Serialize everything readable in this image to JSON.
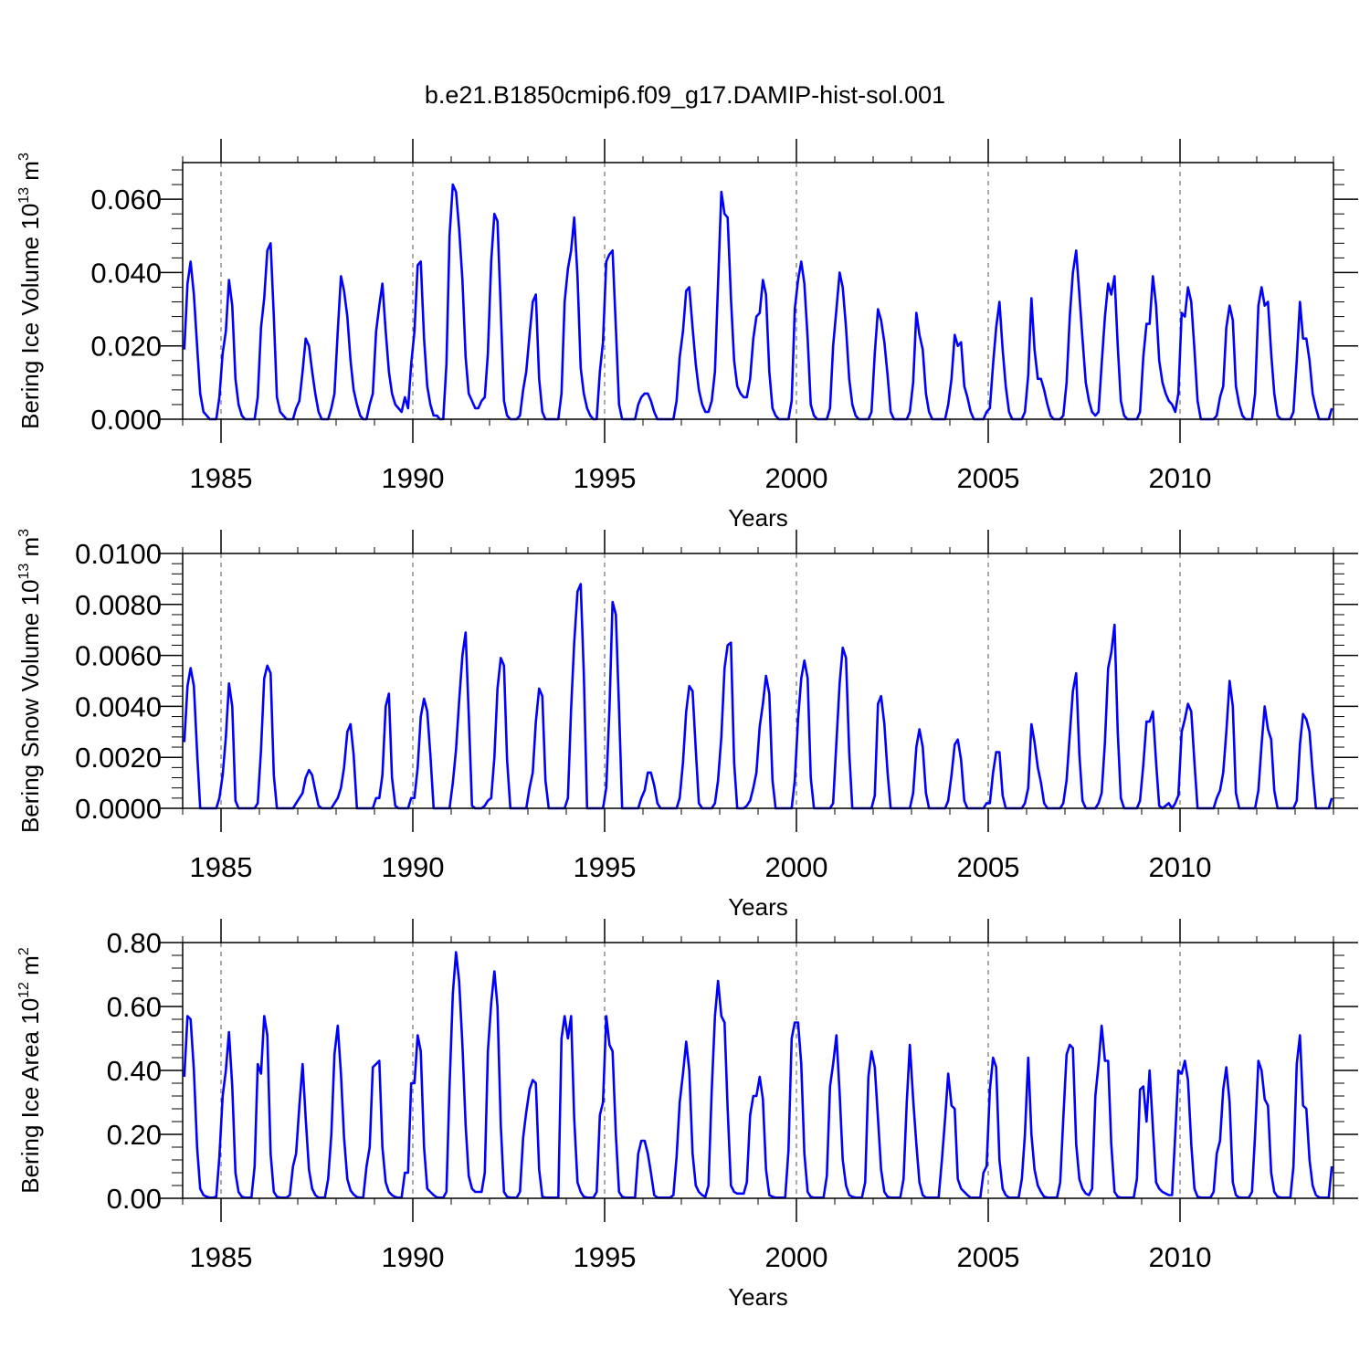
{
  "title": "b.e21.B1850cmip6.f09_g17.DAMIP-hist-sol.001",
  "colors": {
    "series": "#0000ff",
    "axis": "#000000",
    "grid": "#555555"
  },
  "chart_data": [
    {
      "type": "line",
      "name": "ice-volume",
      "ylabel_prefix": "Bering Ice Volume 10",
      "ylabel_exp": "13",
      "ylabel_unit": " m",
      "ylabel_unit_exp": "3",
      "xlabel": "Years",
      "xlim": [
        1984,
        2014
      ],
      "ylim": [
        0,
        0.07
      ],
      "yticks": [
        0,
        0.02,
        0.04,
        0.06
      ],
      "ytick_labels": [
        "0.000",
        "0.020",
        "0.040",
        "0.060"
      ],
      "xticks": [
        1985,
        1990,
        1995,
        2000,
        2005,
        2010
      ],
      "xtick_labels": [
        "1985",
        "1990",
        "1995",
        "2000",
        "2005",
        "2010"
      ],
      "start_year": 1984,
      "values": [
        0.019,
        0.037,
        0.043,
        0.034,
        0.02,
        0.007,
        0.002,
        0.001,
        0,
        0,
        0,
        0.006,
        0.018,
        0.024,
        0.038,
        0.031,
        0.011,
        0.004,
        0.001,
        0,
        0,
        0,
        0,
        0.006,
        0.025,
        0.033,
        0.046,
        0.048,
        0.028,
        0.006,
        0.002,
        0.001,
        0,
        0,
        0,
        0.003,
        0.005,
        0.013,
        0.022,
        0.02,
        0.013,
        0.007,
        0.002,
        0,
        0,
        0,
        0.003,
        0.007,
        0.024,
        0.039,
        0.035,
        0.028,
        0.016,
        0.008,
        0.004,
        0.001,
        0,
        0,
        0.004,
        0.007,
        0.024,
        0.031,
        0.037,
        0.024,
        0.013,
        0.007,
        0.004,
        0.003,
        0.002,
        0.006,
        0.003,
        0.015,
        0.024,
        0.042,
        0.043,
        0.022,
        0.009,
        0.004,
        0.001,
        0.001,
        0,
        0,
        0.015,
        0.05,
        0.064,
        0.062,
        0.052,
        0.038,
        0.017,
        0.007,
        0.005,
        0.003,
        0.003,
        0.005,
        0.006,
        0.018,
        0.043,
        0.056,
        0.054,
        0.03,
        0.005,
        0.001,
        0,
        0,
        0,
        0.001,
        0.008,
        0.013,
        0.023,
        0.032,
        0.034,
        0.011,
        0.002,
        0,
        0,
        0,
        0,
        0,
        0.007,
        0.032,
        0.041,
        0.046,
        0.055,
        0.039,
        0.014,
        0.007,
        0.003,
        0.001,
        0,
        0,
        0.013,
        0.021,
        0.043,
        0.045,
        0.046,
        0.025,
        0.004,
        0,
        0,
        0,
        0,
        0,
        0.004,
        0.006,
        0.007,
        0.007,
        0.005,
        0.002,
        0,
        0,
        0,
        0,
        0,
        0,
        0.005,
        0.017,
        0.024,
        0.035,
        0.036,
        0.025,
        0.015,
        0.008,
        0.004,
        0.002,
        0.002,
        0.005,
        0.013,
        0.037,
        0.062,
        0.056,
        0.055,
        0.033,
        0.016,
        0.009,
        0.007,
        0.006,
        0.006,
        0.011,
        0.022,
        0.028,
        0.029,
        0.038,
        0.034,
        0.013,
        0.003,
        0.001,
        0,
        0,
        0,
        0,
        0.005,
        0.03,
        0.038,
        0.043,
        0.037,
        0.022,
        0.004,
        0.001,
        0,
        0,
        0,
        0,
        0.003,
        0.02,
        0.03,
        0.04,
        0.036,
        0.025,
        0.011,
        0.004,
        0.001,
        0,
        0,
        0,
        0,
        0.002,
        0.018,
        0.03,
        0.027,
        0.021,
        0.012,
        0.002,
        0,
        0,
        0,
        0,
        0,
        0.002,
        0.01,
        0.029,
        0.023,
        0.019,
        0.007,
        0.002,
        0,
        0,
        0,
        0,
        0,
        0.004,
        0.011,
        0.023,
        0.02,
        0.021,
        0.009,
        0.006,
        0.002,
        0,
        0,
        0,
        0,
        0.002,
        0.003,
        0.015,
        0.025,
        0.032,
        0.019,
        0.009,
        0.002,
        0,
        0,
        0,
        0,
        0.002,
        0.012,
        0.033,
        0.019,
        0.011,
        0.011,
        0.008,
        0.004,
        0.001,
        0,
        0,
        0,
        0.001,
        0.01,
        0.028,
        0.04,
        0.046,
        0.034,
        0.022,
        0.01,
        0.005,
        0.002,
        0.001,
        0.002,
        0.015,
        0.028,
        0.037,
        0.034,
        0.039,
        0.02,
        0.005,
        0.001,
        0,
        0,
        0,
        0,
        0.002,
        0.017,
        0.026,
        0.026,
        0.039,
        0.031,
        0.016,
        0.01,
        0.007,
        0.005,
        0.004,
        0.002,
        0.007,
        0.029,
        0.028,
        0.036,
        0.032,
        0.019,
        0.005,
        0,
        0,
        0,
        0,
        0,
        0.001,
        0.006,
        0.009,
        0.025,
        0.031,
        0.027,
        0.009,
        0.004,
        0.001,
        0,
        0,
        0,
        0.007,
        0.031,
        0.036,
        0.031,
        0.032,
        0.018,
        0.007,
        0.001,
        0,
        0,
        0,
        0,
        0.002,
        0.016,
        0.032,
        0.022,
        0.022,
        0.016,
        0.007,
        0.003,
        0,
        0,
        0,
        0,
        0.003
      ]
    },
    {
      "type": "line",
      "name": "snow-volume",
      "ylabel_prefix": "Bering Snow Volume 10",
      "ylabel_exp": "13",
      "ylabel_unit": " m",
      "ylabel_unit_exp": "3",
      "xlabel": "Years",
      "xlim": [
        1984,
        2014
      ],
      "ylim": [
        0,
        0.01
      ],
      "yticks": [
        0,
        0.002,
        0.004,
        0.006,
        0.008,
        0.01
      ],
      "ytick_labels": [
        "0.0000",
        "0.0020",
        "0.0040",
        "0.0060",
        "0.0080",
        "0.0100"
      ],
      "xticks": [
        1985,
        1990,
        1995,
        2000,
        2005,
        2010
      ],
      "xtick_labels": [
        "1985",
        "1990",
        "1995",
        "2000",
        "2005",
        "2010"
      ],
      "start_year": 1984,
      "values": [
        0.0026,
        0.0048,
        0.0055,
        0.0048,
        0.0022,
        0,
        0,
        0,
        0,
        0,
        0,
        0.0004,
        0.0013,
        0.0028,
        0.0049,
        0.004,
        0.0003,
        0,
        0,
        0,
        0,
        0,
        0,
        0.0002,
        0.0023,
        0.0051,
        0.0056,
        0.0053,
        0.0013,
        0,
        0,
        0,
        0,
        0,
        0,
        0.0002,
        0.0004,
        0.0006,
        0.0012,
        0.0015,
        0.0013,
        0.0007,
        0.0001,
        0,
        0,
        0,
        0,
        0.0002,
        0.0004,
        0.0008,
        0.0016,
        0.003,
        0.0033,
        0.0021,
        0,
        0,
        0,
        0,
        0,
        0,
        0.0004,
        0.0004,
        0.0013,
        0.004,
        0.0045,
        0.0012,
        0.0001,
        0,
        0,
        0,
        0,
        0.0004,
        0.0004,
        0.0016,
        0.0036,
        0.0043,
        0.0038,
        0.0021,
        0,
        0,
        0,
        0,
        0,
        0,
        0.001,
        0.0023,
        0.0042,
        0.006,
        0.0069,
        0.0037,
        0.0001,
        0,
        0,
        0,
        0.0001,
        0.0003,
        0.0004,
        0.002,
        0.0047,
        0.0059,
        0.0056,
        0.0019,
        0,
        0,
        0,
        0,
        0,
        0,
        0.0008,
        0.0014,
        0.0034,
        0.0047,
        0.0044,
        0.0011,
        0,
        0,
        0,
        0,
        0,
        0,
        0.0004,
        0.0039,
        0.0065,
        0.0085,
        0.0088,
        0.0053,
        0,
        0,
        0,
        0,
        0,
        0,
        0.0008,
        0.0039,
        0.0081,
        0.0076,
        0.0039,
        0,
        0,
        0,
        0,
        0,
        0,
        0.0004,
        0.0007,
        0.0014,
        0.0014,
        0.0009,
        0.0002,
        0,
        0,
        0,
        0,
        0,
        0,
        0.0004,
        0.0018,
        0.0038,
        0.0048,
        0.0046,
        0.0023,
        0.0002,
        0,
        0,
        0,
        0,
        0.0002,
        0.0011,
        0.0028,
        0.0055,
        0.0064,
        0.0065,
        0.0018,
        0,
        0,
        0,
        0.0001,
        0.0003,
        0.0008,
        0.0014,
        0.0032,
        0.0041,
        0.0052,
        0.0045,
        0.0011,
        0,
        0,
        0,
        0,
        0,
        0,
        0.0011,
        0.0035,
        0.0051,
        0.0058,
        0.0051,
        0.0012,
        0,
        0,
        0,
        0,
        0,
        0,
        0.0002,
        0.0026,
        0.0049,
        0.0063,
        0.0059,
        0.0022,
        0,
        0,
        0,
        0,
        0,
        0,
        0,
        0.0005,
        0.0041,
        0.0044,
        0.0033,
        0.0014,
        0,
        0,
        0,
        0,
        0,
        0,
        0,
        0.0006,
        0.0024,
        0.0031,
        0.0024,
        0.0006,
        0,
        0,
        0,
        0,
        0,
        0,
        0.0003,
        0.0013,
        0.0025,
        0.0027,
        0.0019,
        0.0003,
        0,
        0,
        0,
        0,
        0,
        0,
        0.0002,
        0.0002,
        0.0014,
        0.0022,
        0.0022,
        0.0005,
        0,
        0,
        0,
        0,
        0,
        0,
        0.0002,
        0.0008,
        0.0033,
        0.0026,
        0.0016,
        0.001,
        0.0002,
        0,
        0,
        0,
        0,
        0,
        0.0002,
        0.0011,
        0.0029,
        0.0046,
        0.0053,
        0.0021,
        0.0003,
        0,
        0,
        0,
        0,
        0.0002,
        0.0006,
        0.0026,
        0.0055,
        0.0061,
        0.0072,
        0.003,
        0.0004,
        0,
        0,
        0,
        0,
        0,
        0.0003,
        0.0017,
        0.0034,
        0.0034,
        0.0038,
        0.0018,
        0.0001,
        0,
        0.0001,
        0.0002,
        0,
        0.0002,
        0.0005,
        0.003,
        0.0035,
        0.0041,
        0.0038,
        0.0018,
        0,
        0,
        0,
        0,
        0,
        0,
        0.0004,
        0.0007,
        0.0014,
        0.003,
        0.005,
        0.004,
        0.0006,
        0,
        0,
        0,
        0,
        0,
        0,
        0.0007,
        0.0025,
        0.004,
        0.0031,
        0.0027,
        0.0007,
        0,
        0,
        0,
        0,
        0,
        0,
        0.0003,
        0.0025,
        0.0037,
        0.0035,
        0.003,
        0.0014,
        0,
        0,
        0,
        0,
        0,
        0.0004
      ]
    },
    {
      "type": "line",
      "name": "ice-area",
      "ylabel_prefix": "Bering Ice Area 10",
      "ylabel_exp": "12",
      "ylabel_unit": " m",
      "ylabel_unit_exp": "2",
      "xlabel": "Years",
      "xlim": [
        1984,
        2014
      ],
      "ylim": [
        0,
        0.8
      ],
      "yticks": [
        0,
        0.2,
        0.4,
        0.6,
        0.8
      ],
      "ytick_labels": [
        "0.00",
        "0.20",
        "0.40",
        "0.60",
        "0.80"
      ],
      "xticks": [
        1985,
        1990,
        1995,
        2000,
        2005,
        2010
      ],
      "xtick_labels": [
        "1985",
        "1990",
        "1995",
        "2000",
        "2005",
        "2010"
      ],
      "start_year": 1984,
      "values": [
        0.38,
        0.57,
        0.56,
        0.4,
        0.16,
        0.03,
        0.01,
        0.005,
        0.002,
        0.002,
        0.005,
        0.13,
        0.32,
        0.4,
        0.52,
        0.35,
        0.08,
        0.02,
        0.005,
        0.002,
        0.002,
        0.002,
        0.1,
        0.42,
        0.39,
        0.57,
        0.51,
        0.14,
        0.02,
        0.005,
        0.002,
        0.002,
        0.002,
        0.01,
        0.1,
        0.14,
        0.29,
        0.42,
        0.25,
        0.09,
        0.03,
        0.01,
        0.002,
        0.002,
        0.002,
        0.06,
        0.2,
        0.45,
        0.54,
        0.39,
        0.19,
        0.06,
        0.025,
        0.012,
        0.004,
        0.002,
        0.002,
        0.1,
        0.16,
        0.41,
        0.42,
        0.43,
        0.16,
        0.05,
        0.02,
        0.01,
        0.004,
        0.002,
        0.002,
        0.08,
        0.08,
        0.36,
        0.36,
        0.51,
        0.46,
        0.16,
        0.03,
        0.02,
        0.01,
        0.003,
        0.002,
        0.002,
        0.02,
        0.35,
        0.64,
        0.77,
        0.68,
        0.48,
        0.23,
        0.07,
        0.03,
        0.02,
        0.02,
        0.02,
        0.08,
        0.46,
        0.61,
        0.71,
        0.6,
        0.23,
        0.02,
        0.005,
        0.002,
        0.002,
        0.002,
        0.02,
        0.19,
        0.27,
        0.34,
        0.37,
        0.36,
        0.09,
        0.005,
        0.002,
        0.002,
        0.002,
        0.002,
        0.002,
        0.5,
        0.57,
        0.5,
        0.57,
        0.25,
        0.05,
        0.02,
        0.005,
        0.002,
        0.002,
        0.002,
        0.02,
        0.26,
        0.3,
        0.57,
        0.48,
        0.46,
        0.2,
        0.02,
        0.005,
        0.002,
        0.002,
        0.002,
        0.002,
        0.14,
        0.18,
        0.18,
        0.14,
        0.08,
        0.01,
        0.002,
        0.002,
        0.002,
        0.002,
        0.002,
        0.01,
        0.13,
        0.3,
        0.39,
        0.49,
        0.4,
        0.14,
        0.04,
        0.02,
        0.01,
        0.005,
        0.04,
        0.34,
        0.57,
        0.68,
        0.57,
        0.55,
        0.28,
        0.04,
        0.02,
        0.015,
        0.015,
        0.015,
        0.05,
        0.26,
        0.32,
        0.32,
        0.38,
        0.31,
        0.09,
        0.01,
        0.005,
        0.002,
        0.002,
        0.002,
        0.002,
        0.15,
        0.5,
        0.55,
        0.55,
        0.42,
        0.14,
        0.02,
        0.005,
        0.002,
        0.002,
        0.002,
        0.002,
        0.07,
        0.35,
        0.42,
        0.51,
        0.33,
        0.12,
        0.04,
        0.01,
        0.005,
        0.002,
        0.002,
        0.002,
        0.05,
        0.38,
        0.46,
        0.41,
        0.25,
        0.09,
        0.02,
        0.005,
        0.002,
        0.002,
        0.002,
        0.002,
        0.06,
        0.3,
        0.48,
        0.31,
        0.17,
        0.05,
        0.01,
        0.002,
        0.002,
        0.002,
        0.002,
        0.002,
        0.12,
        0.25,
        0.39,
        0.29,
        0.28,
        0.06,
        0.03,
        0.02,
        0.01,
        0.002,
        0.002,
        0.002,
        0.002,
        0.08,
        0.1,
        0.34,
        0.44,
        0.41,
        0.12,
        0.03,
        0.01,
        0.002,
        0.002,
        0.002,
        0.002,
        0.06,
        0.2,
        0.44,
        0.2,
        0.09,
        0.04,
        0.02,
        0.005,
        0.002,
        0.002,
        0.002,
        0.002,
        0.05,
        0.25,
        0.45,
        0.48,
        0.47,
        0.17,
        0.06,
        0.03,
        0.015,
        0.01,
        0.03,
        0.32,
        0.42,
        0.54,
        0.43,
        0.43,
        0.17,
        0.02,
        0.005,
        0.002,
        0.002,
        0.002,
        0.002,
        0.002,
        0.06,
        0.34,
        0.35,
        0.24,
        0.4,
        0.22,
        0.05,
        0.03,
        0.02,
        0.015,
        0.01,
        0.01,
        0.2,
        0.4,
        0.39,
        0.43,
        0.37,
        0.17,
        0.03,
        0.005,
        0.002,
        0.002,
        0.002,
        0.002,
        0.02,
        0.14,
        0.18,
        0.34,
        0.41,
        0.3,
        0.05,
        0.01,
        0.002,
        0.002,
        0.002,
        0.002,
        0.02,
        0.2,
        0.43,
        0.4,
        0.31,
        0.29,
        0.08,
        0.02,
        0.005,
        0.002,
        0.002,
        0.002,
        0.002,
        0.1,
        0.42,
        0.51,
        0.29,
        0.28,
        0.12,
        0.04,
        0.01,
        0.003,
        0.002,
        0.002,
        0.002,
        0.1
      ]
    }
  ]
}
